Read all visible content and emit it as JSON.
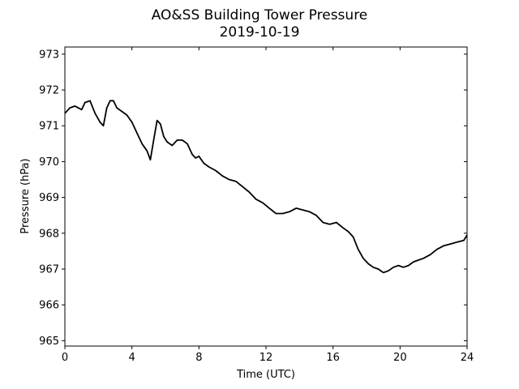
{
  "chart_data": {
    "type": "line",
    "title": "AO&SS Building Tower Pressure",
    "subtitle": "2019-10-19",
    "xlabel": "Time (UTC)",
    "ylabel": "Pressure (hPa)",
    "xlim": [
      0,
      24
    ],
    "ylim": [
      964.85,
      973.2
    ],
    "xticks": [
      0,
      4,
      8,
      12,
      16,
      20,
      24
    ],
    "yticks": [
      965,
      966,
      967,
      968,
      969,
      970,
      971,
      972,
      973
    ],
    "grid": false,
    "line_color": "#000000",
    "series": [
      {
        "x": [
          0,
          0.3,
          0.6,
          1.0,
          1.2,
          1.5,
          1.8,
          2.1,
          2.3,
          2.5,
          2.7,
          2.9,
          3.1,
          3.4,
          3.7,
          4.0,
          4.3,
          4.6,
          4.9,
          5.1,
          5.3,
          5.5,
          5.7,
          5.9,
          6.1,
          6.4,
          6.7,
          7.0,
          7.3,
          7.6,
          7.8,
          8.0,
          8.3,
          8.6,
          9.0,
          9.4,
          9.8,
          10.2,
          10.6,
          11.0,
          11.4,
          11.8,
          12.2,
          12.6,
          13.0,
          13.4,
          13.8,
          14.2,
          14.6,
          15.0,
          15.4,
          15.8,
          16.2,
          16.6,
          16.9,
          17.2,
          17.5,
          17.8,
          18.1,
          18.4,
          18.7,
          19.0,
          19.3,
          19.6,
          19.9,
          20.2,
          20.5,
          20.8,
          21.1,
          21.4,
          21.8,
          22.2,
          22.6,
          23.0,
          23.4,
          23.8,
          24.0
        ],
        "y": [
          971.35,
          971.5,
          971.55,
          971.45,
          971.65,
          971.7,
          971.35,
          971.1,
          971.0,
          971.5,
          971.7,
          971.7,
          971.5,
          971.4,
          971.3,
          971.1,
          970.8,
          970.5,
          970.3,
          970.05,
          970.6,
          971.15,
          971.05,
          970.7,
          970.55,
          970.45,
          970.6,
          970.6,
          970.5,
          970.2,
          970.1,
          970.15,
          969.95,
          969.85,
          969.75,
          969.6,
          969.5,
          969.45,
          969.3,
          969.15,
          968.95,
          968.85,
          968.7,
          968.55,
          968.55,
          968.6,
          968.7,
          968.65,
          968.6,
          968.5,
          968.3,
          968.25,
          968.3,
          968.15,
          968.05,
          967.9,
          967.55,
          967.3,
          967.15,
          967.05,
          967.0,
          966.9,
          966.95,
          967.05,
          967.1,
          967.05,
          967.1,
          967.2,
          967.25,
          967.3,
          967.4,
          967.55,
          967.65,
          967.7,
          967.75,
          967.8,
          967.95
        ]
      }
    ]
  }
}
